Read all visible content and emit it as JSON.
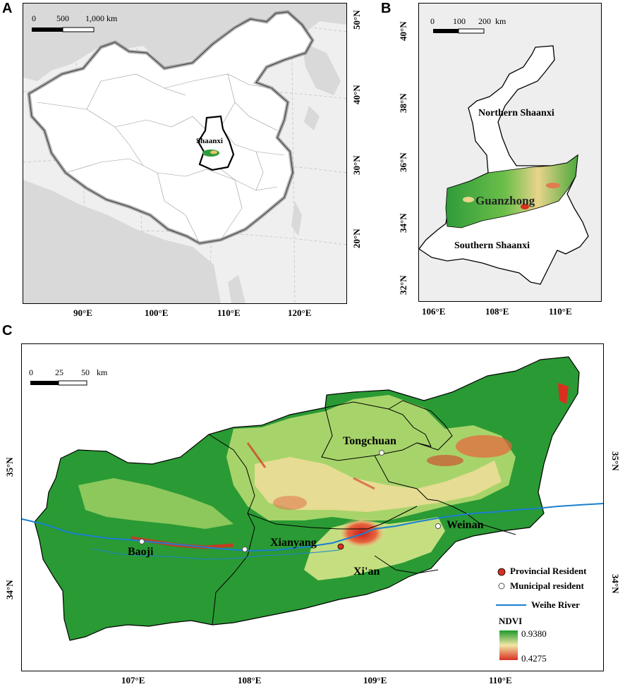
{
  "panel_a": {
    "letter": "A",
    "scale": {
      "t0": "0",
      "t1": "500",
      "t2": "1,000",
      "unit": "km"
    },
    "region_label": "Shaanxi",
    "lon_labels": [
      "90°E",
      "100°E",
      "110°E",
      "120°E"
    ],
    "lat_labels": [
      "50°N",
      "40°N",
      "30°N",
      "20°N"
    ],
    "colors": {
      "land": "#d9d9d9",
      "ocean": "#efefef",
      "china": "#ffffff"
    }
  },
  "panel_b": {
    "letter": "B",
    "scale": {
      "t0": "0",
      "t1": "100",
      "t2": "200",
      "unit": "km"
    },
    "labels": {
      "north": "Northern Shaanxi",
      "center": "Guanzhong",
      "south": "Southern Shaanxi"
    },
    "lon_labels": [
      "106°E",
      "108°E",
      "110°E"
    ],
    "lat_labels": [
      "40°N",
      "38°N",
      "36°N",
      "34°N",
      "32°N"
    ]
  },
  "panel_c": {
    "letter": "C",
    "scale": {
      "t0": "0",
      "t1": "25",
      "t2": "50",
      "unit": "km"
    },
    "cities": {
      "baoji": "Baoji",
      "xianyang": "Xianyang",
      "xian": "Xi'an",
      "tongchuan": "Tongchuan",
      "weinan": "Weinan"
    },
    "legend": {
      "provincial": "Provincial Resident",
      "municipal": "Municipal resident",
      "river": "Weihe River",
      "ndvi_title": "NDVI",
      "ndvi_max": "0.9380",
      "ndvi_min": "0.4275"
    },
    "lon_labels": [
      "107°E",
      "108°E",
      "109°E",
      "110°E"
    ],
    "lat_labels": [
      "35°N",
      "34°N"
    ],
    "colors": {
      "high": "#1e9a2c",
      "mid": "#f3e6a6",
      "low": "#d7301f",
      "river": "#1a7fd0"
    }
  }
}
